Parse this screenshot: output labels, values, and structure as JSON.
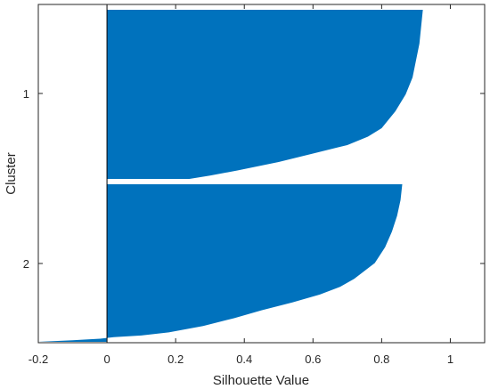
{
  "chart_data": {
    "type": "silhouette",
    "title": "",
    "xlabel": "Silhouette Value",
    "ylabel": "Cluster",
    "xlim": [
      -0.2,
      1.1
    ],
    "x_ticks": [
      -0.2,
      0,
      0.2,
      0.4,
      0.6,
      0.8,
      1
    ],
    "x_tick_labels": [
      "-0.2",
      "0",
      "0.2",
      "0.4",
      "0.6",
      "0.8",
      "1"
    ],
    "categories": [
      "1",
      "2"
    ],
    "grid": false,
    "legend": "none",
    "bar_color": "#0072BD",
    "clusters": [
      {
        "label": "1",
        "silhouette_profile": [
          [
            0.0,
            0.92
          ],
          [
            0.1,
            0.915
          ],
          [
            0.2,
            0.91
          ],
          [
            0.3,
            0.9
          ],
          [
            0.4,
            0.89
          ],
          [
            0.5,
            0.87
          ],
          [
            0.6,
            0.84
          ],
          [
            0.65,
            0.82
          ],
          [
            0.7,
            0.8
          ],
          [
            0.75,
            0.76
          ],
          [
            0.8,
            0.7
          ],
          [
            0.85,
            0.6
          ],
          [
            0.9,
            0.5
          ],
          [
            0.95,
            0.38
          ],
          [
            0.98,
            0.3
          ],
          [
            1.0,
            0.24
          ]
        ]
      },
      {
        "label": "2",
        "silhouette_profile": [
          [
            0.0,
            0.86
          ],
          [
            0.1,
            0.855
          ],
          [
            0.2,
            0.845
          ],
          [
            0.3,
            0.83
          ],
          [
            0.4,
            0.81
          ],
          [
            0.5,
            0.78
          ],
          [
            0.6,
            0.72
          ],
          [
            0.65,
            0.68
          ],
          [
            0.7,
            0.62
          ],
          [
            0.75,
            0.54
          ],
          [
            0.8,
            0.45
          ],
          [
            0.85,
            0.37
          ],
          [
            0.9,
            0.28
          ],
          [
            0.94,
            0.18
          ],
          [
            0.96,
            0.1
          ],
          [
            0.97,
            0.02
          ],
          [
            0.98,
            -0.02
          ],
          [
            0.99,
            -0.1
          ],
          [
            1.0,
            -0.2
          ]
        ]
      }
    ]
  }
}
